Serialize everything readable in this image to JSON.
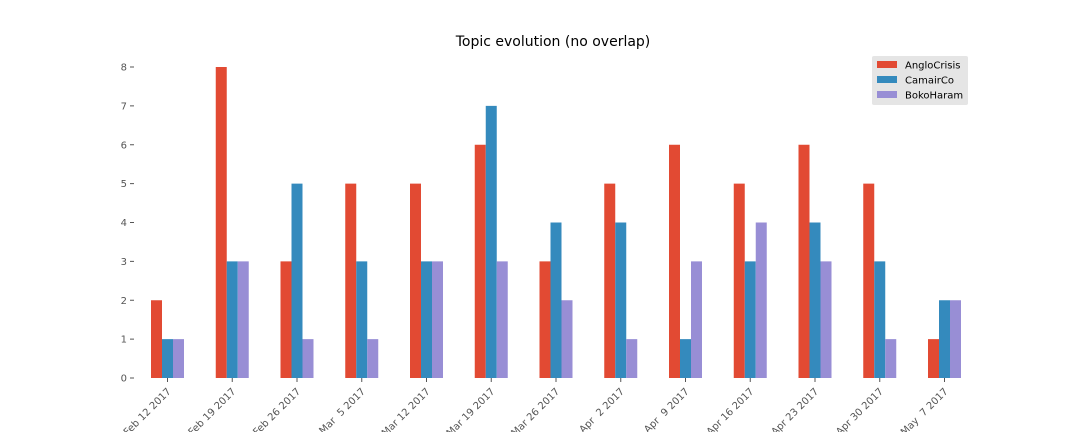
{
  "chart_data": {
    "type": "bar",
    "title": "Topic evolution (no overlap)",
    "xlabel": "",
    "ylabel": "",
    "categories": [
      "Feb 12 2017",
      "Feb 19 2017",
      "Feb 26 2017",
      "Mar  5 2017",
      "Mar 12 2017",
      "Mar 19 2017",
      "Mar 26 2017",
      "Apr  2 2017",
      "Apr  9 2017",
      "Apr 16 2017",
      "Apr 23 2017",
      "Apr 30 2017",
      "May  7 2017"
    ],
    "series": [
      {
        "name": "AngloCrisis",
        "color": "#E24A33",
        "values": [
          2,
          8,
          3,
          5,
          5,
          6,
          3,
          5,
          6,
          5,
          6,
          5,
          1
        ]
      },
      {
        "name": "CamairCo",
        "color": "#348ABD",
        "values": [
          1,
          3,
          5,
          3,
          3,
          7,
          4,
          4,
          1,
          3,
          4,
          3,
          2
        ]
      },
      {
        "name": "BokoHaram",
        "color": "#988ED5",
        "values": [
          1,
          3,
          1,
          1,
          3,
          3,
          2,
          1,
          3,
          4,
          3,
          1,
          2
        ]
      }
    ],
    "ylim": [
      0,
      8
    ],
    "yticks": [
      0,
      1,
      2,
      3,
      4,
      5,
      6,
      7,
      8
    ],
    "grid": false,
    "legend_position": "top-right"
  }
}
